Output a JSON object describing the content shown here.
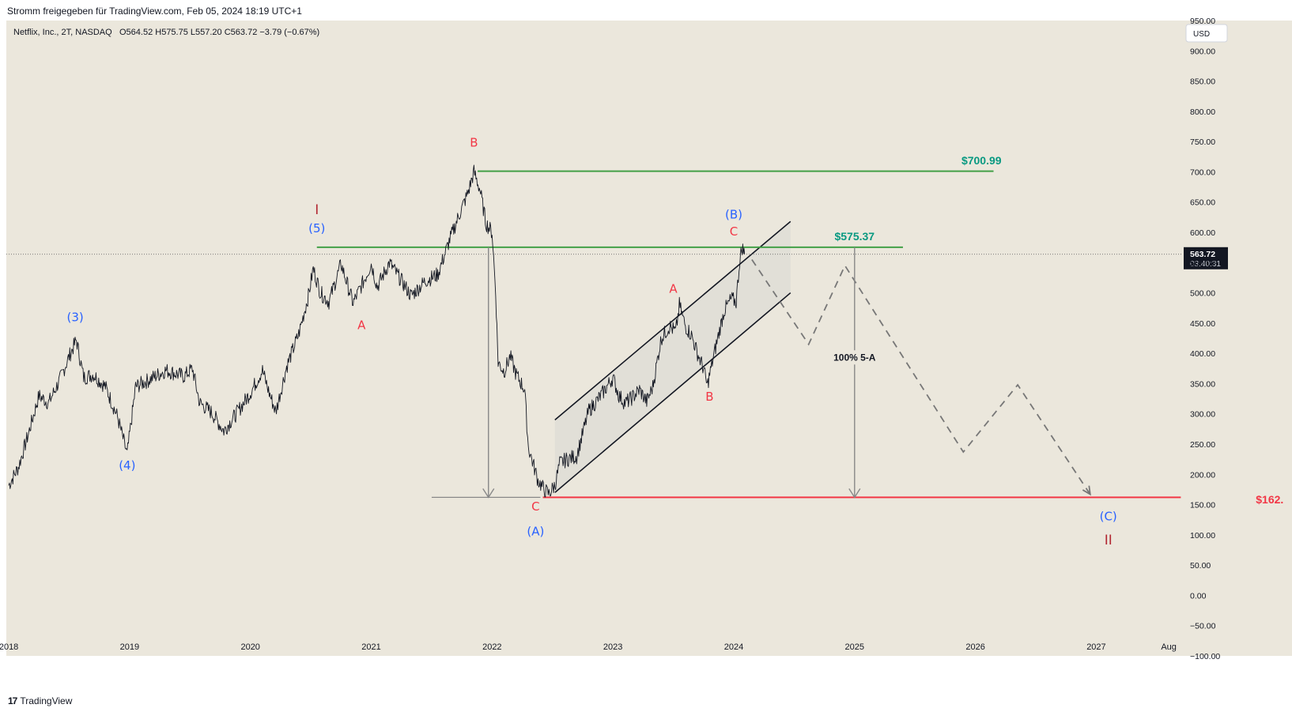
{
  "header": {
    "shared_by": "Stromm freigegeben für TradingView.com, Feb 05, 2024 18:19 UTC+1"
  },
  "legend": {
    "symbol": "Netflix, Inc., 2T, NASDAQ",
    "ohlc": "O564.52  H575.75  L557.20  C563.72  −3.79 (−0.67%)"
  },
  "currency_button": "USD",
  "price_tag": {
    "price": "563.72",
    "countdown": "03:40:31",
    "value": 563.72
  },
  "footer": {
    "brand": "TradingView",
    "brand_mark": "17"
  },
  "colors": {
    "background": "#ebe7dc",
    "green_line": "#43a047",
    "green_label": "#089981",
    "red_line": "#f23645",
    "wave_blue": "#2962ff",
    "wave_red": "#f23645",
    "wave_dark_red": "#b22833",
    "arrow_gray": "#888888",
    "channel_fill": "#d8d8d4"
  },
  "chart_data": {
    "type": "line",
    "series": [
      {
        "points": [
          [
            2018.0,
            182
          ],
          [
            2018.08,
            212
          ],
          [
            2018.16,
            265
          ],
          [
            2018.25,
            330
          ],
          [
            2018.33,
            318
          ],
          [
            2018.42,
            355
          ],
          [
            2018.5,
            395
          ],
          [
            2018.56,
            422
          ],
          [
            2018.62,
            360
          ],
          [
            2018.7,
            365
          ],
          [
            2018.8,
            345
          ],
          [
            2018.9,
            295
          ],
          [
            2018.98,
            233
          ],
          [
            2019.05,
            345
          ],
          [
            2019.15,
            355
          ],
          [
            2019.3,
            372
          ],
          [
            2019.45,
            362
          ],
          [
            2019.52,
            375
          ],
          [
            2019.58,
            318
          ],
          [
            2019.68,
            302
          ],
          [
            2019.78,
            272
          ],
          [
            2019.9,
            305
          ],
          [
            2020.0,
            335
          ],
          [
            2020.1,
            372
          ],
          [
            2020.15,
            338
          ],
          [
            2020.21,
            303
          ],
          [
            2020.3,
            378
          ],
          [
            2020.4,
            432
          ],
          [
            2020.48,
            495
          ],
          [
            2020.52,
            540
          ],
          [
            2020.58,
            500
          ],
          [
            2020.65,
            485
          ],
          [
            2020.75,
            548
          ],
          [
            2020.85,
            483
          ],
          [
            2020.95,
            525
          ],
          [
            2021.0,
            548
          ],
          [
            2021.05,
            510
          ],
          [
            2021.15,
            550
          ],
          [
            2021.25,
            520
          ],
          [
            2021.33,
            495
          ],
          [
            2021.45,
            520
          ],
          [
            2021.55,
            530
          ],
          [
            2021.65,
            588
          ],
          [
            2021.72,
            625
          ],
          [
            2021.8,
            665
          ],
          [
            2021.85,
            700
          ],
          [
            2021.9,
            670
          ],
          [
            2021.95,
            615
          ],
          [
            2022.0,
            600
          ],
          [
            2022.03,
            500
          ],
          [
            2022.05,
            385
          ],
          [
            2022.1,
            370
          ],
          [
            2022.15,
            395
          ],
          [
            2022.2,
            365
          ],
          [
            2022.27,
            340
          ],
          [
            2022.3,
            245
          ],
          [
            2022.38,
            190
          ],
          [
            2022.43,
            175
          ],
          [
            2022.47,
            168
          ],
          [
            2022.52,
            182
          ],
          [
            2022.56,
            218
          ],
          [
            2022.62,
            225
          ],
          [
            2022.7,
            230
          ],
          [
            2022.8,
            305
          ],
          [
            2022.9,
            330
          ],
          [
            2023.0,
            360
          ],
          [
            2023.05,
            330
          ],
          [
            2023.1,
            318
          ],
          [
            2023.15,
            325
          ],
          [
            2023.22,
            340
          ],
          [
            2023.28,
            320
          ],
          [
            2023.33,
            345
          ],
          [
            2023.4,
            425
          ],
          [
            2023.47,
            445
          ],
          [
            2023.52,
            435
          ],
          [
            2023.55,
            480
          ],
          [
            2023.6,
            445
          ],
          [
            2023.65,
            430
          ],
          [
            2023.7,
            400
          ],
          [
            2023.75,
            375
          ],
          [
            2023.78,
            346
          ],
          [
            2023.85,
            410
          ],
          [
            2023.92,
            470
          ],
          [
            2023.98,
            490
          ],
          [
            2024.02,
            485
          ],
          [
            2024.05,
            555
          ],
          [
            2024.07,
            575
          ],
          [
            2024.09,
            564
          ]
        ]
      }
    ],
    "annotations": {
      "levels": [
        {
          "label": "$700.99",
          "value": 700.99,
          "x_start": 2021.88,
          "x_end": 2026.15,
          "color": "green"
        },
        {
          "label": "$575.37",
          "value": 575.37,
          "x_start": 2020.55,
          "x_end": 2025.4,
          "color": "green"
        },
        {
          "label": "$162.",
          "value": 162,
          "x_start": 2022.42,
          "x_end": 2027.7,
          "color": "red"
        }
      ],
      "wave_labels": [
        {
          "text": "(3)",
          "x": 2018.55,
          "y": 453,
          "color": "blue"
        },
        {
          "text": "(4)",
          "x": 2018.98,
          "y": 208,
          "color": "blue"
        },
        {
          "text": "I",
          "x": 2020.55,
          "y": 630,
          "color": "dark_red"
        },
        {
          "text": "(5)",
          "x": 2020.55,
          "y": 600,
          "color": "blue"
        },
        {
          "text": "A",
          "x": 2020.92,
          "y": 440,
          "color": "red"
        },
        {
          "text": "B",
          "x": 2021.85,
          "y": 742,
          "color": "red"
        },
        {
          "text": "C",
          "x": 2022.36,
          "y": 140,
          "color": "red"
        },
        {
          "text": "(A)",
          "x": 2022.36,
          "y": 99,
          "color": "blue"
        },
        {
          "text": "A",
          "x": 2023.5,
          "y": 500,
          "color": "red"
        },
        {
          "text": "B",
          "x": 2023.8,
          "y": 322,
          "color": "red"
        },
        {
          "text": "(B)",
          "x": 2024.0,
          "y": 623,
          "color": "blue"
        },
        {
          "text": "C",
          "x": 2024.0,
          "y": 595,
          "color": "red"
        },
        {
          "text": "(C)",
          "x": 2027.1,
          "y": 124,
          "color": "blue"
        },
        {
          "text": "II",
          "x": 2027.1,
          "y": 84,
          "color": "dark_red"
        }
      ],
      "measure": {
        "label": "100% 5-A",
        "x": 2025.0,
        "from": 575.37,
        "to": 162
      },
      "drop_arrow": {
        "x": 2021.97,
        "from": 575.37,
        "to": 162
      },
      "forecast_path": [
        [
          2024.15,
          555
        ],
        [
          2024.62,
          415
        ],
        [
          2024.92,
          545
        ],
        [
          2025.9,
          237
        ],
        [
          2026.35,
          348
        ],
        [
          2026.95,
          167
        ]
      ],
      "channel": {
        "upper": [
          [
            2022.52,
            290
          ],
          [
            2024.47,
            618
          ]
        ],
        "lower": [
          [
            2022.52,
            170
          ],
          [
            2024.47,
            500
          ]
        ]
      }
    },
    "x_ticks": [
      {
        "label": "2018",
        "x": 2018.0
      },
      {
        "label": "2019",
        "x": 2019.0
      },
      {
        "label": "2020",
        "x": 2020.0
      },
      {
        "label": "2021",
        "x": 2021.0
      },
      {
        "label": "2022",
        "x": 2022.0
      },
      {
        "label": "2023",
        "x": 2023.0
      },
      {
        "label": "2024",
        "x": 2024.0
      },
      {
        "label": "2025",
        "x": 2025.0
      },
      {
        "label": "2026",
        "x": 2026.0
      },
      {
        "label": "2027",
        "x": 2027.0
      },
      {
        "label": "Aug",
        "x": 2027.6
      }
    ],
    "y_ticks": [
      "950.00",
      "900.00",
      "850.00",
      "800.00",
      "750.00",
      "700.00",
      "650.00",
      "600.00",
      "550.00",
      "500.00",
      "450.00",
      "400.00",
      "350.00",
      "300.00",
      "250.00",
      "200.00",
      "150.00",
      "100.00",
      "50.00",
      "0.00",
      "−50.00",
      "−100.00"
    ],
    "y_tick_values": [
      950,
      900,
      850,
      800,
      750,
      700,
      650,
      600,
      550,
      500,
      450,
      400,
      350,
      300,
      250,
      200,
      150,
      100,
      50,
      0,
      -50,
      -100
    ],
    "xlim": [
      2017.98,
      2028.62
    ],
    "ylim": [
      -100,
      950
    ]
  }
}
